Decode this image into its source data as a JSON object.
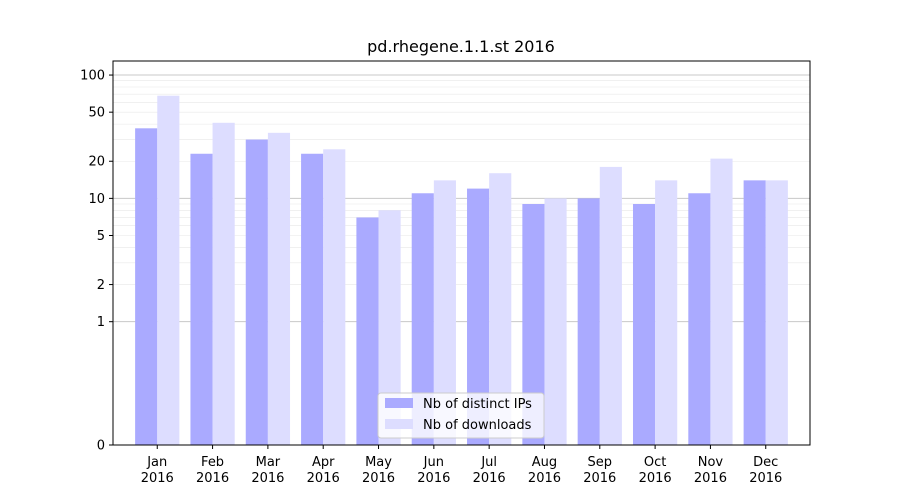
{
  "chart_data": {
    "type": "bar",
    "title": "pd.rhegene.1.1.st 2016",
    "xlabel": "",
    "ylabel": "",
    "yscale": "symlog",
    "ylim": [
      0,
      130
    ],
    "yticks": [
      0,
      1,
      2,
      5,
      10,
      20,
      50,
      100
    ],
    "categories": [
      [
        "Jan",
        "2016"
      ],
      [
        "Feb",
        "2016"
      ],
      [
        "Mar",
        "2016"
      ],
      [
        "Apr",
        "2016"
      ],
      [
        "May",
        "2016"
      ],
      [
        "Jun",
        "2016"
      ],
      [
        "Jul",
        "2016"
      ],
      [
        "Aug",
        "2016"
      ],
      [
        "Sep",
        "2016"
      ],
      [
        "Oct",
        "2016"
      ],
      [
        "Nov",
        "2016"
      ],
      [
        "Dec",
        "2016"
      ]
    ],
    "series": [
      {
        "name": "Nb of distinct IPs",
        "color": "#aaaaff",
        "values": [
          37,
          23,
          30,
          23,
          7,
          11,
          12,
          9,
          10,
          9,
          11,
          14
        ]
      },
      {
        "name": "Nb of downloads",
        "color": "#ddddff",
        "values": [
          68,
          41,
          34,
          25,
          8,
          14,
          16,
          10,
          18,
          14,
          21,
          14
        ]
      }
    ],
    "legend_position": "bottom-center",
    "grid": true
  }
}
